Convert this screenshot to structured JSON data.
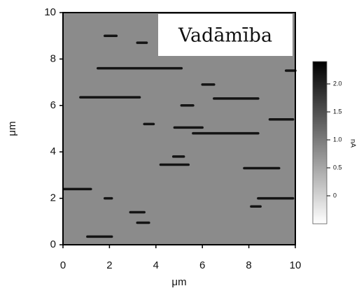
{
  "chart_data": {
    "type": "heatmap",
    "title": "Vadāmība",
    "xlabel": "μm",
    "ylabel": "μm",
    "xlim": [
      0,
      10
    ],
    "xticks": [
      0,
      2,
      4,
      6,
      8,
      10
    ],
    "ylim": [
      0,
      10
    ],
    "yticks": [
      0,
      2,
      4,
      6,
      8,
      10
    ],
    "background_color": "#8b8b8b",
    "streak_color": "#141414",
    "streaks": [
      [
        1.8,
        2.3,
        9.0
      ],
      [
        3.2,
        3.6,
        8.7
      ],
      [
        1.5,
        5.1,
        7.6
      ],
      [
        9.6,
        10,
        7.5
      ],
      [
        0.75,
        3.3,
        6.35
      ],
      [
        6.0,
        6.5,
        6.9
      ],
      [
        6.5,
        8.4,
        6.3
      ],
      [
        5.1,
        5.6,
        6.0
      ],
      [
        8.9,
        9.9,
        5.4
      ],
      [
        4.8,
        6.0,
        5.05
      ],
      [
        5.6,
        8.4,
        4.8
      ],
      [
        3.5,
        3.9,
        5.2
      ],
      [
        4.2,
        5.4,
        3.45
      ],
      [
        4.75,
        5.2,
        3.8
      ],
      [
        7.8,
        9.3,
        3.3
      ],
      [
        0.05,
        1.2,
        2.4
      ],
      [
        1.8,
        2.1,
        2.0
      ],
      [
        8.4,
        9.9,
        2.0
      ],
      [
        8.1,
        8.5,
        1.65
      ],
      [
        2.9,
        3.5,
        1.4
      ],
      [
        3.2,
        3.7,
        0.95
      ],
      [
        1.05,
        2.1,
        0.35
      ]
    ],
    "colorbar": {
      "label": "nA",
      "lim": [
        -0.5,
        2.4
      ],
      "colors": [
        "#ffffff",
        "#000000"
      ],
      "ticks": [
        0,
        0.5,
        {
          "value": 1,
          "label": "1.0"
        },
        1.5,
        {
          "value": 2,
          "label": "2.0"
        }
      ]
    }
  }
}
